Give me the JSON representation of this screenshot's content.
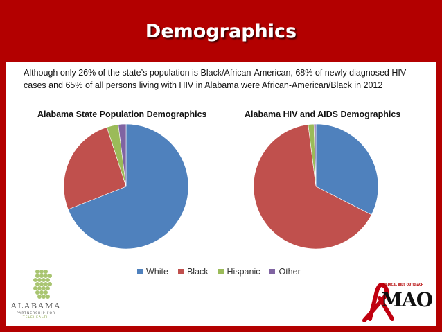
{
  "header": {
    "title": "Demographics"
  },
  "intro_text": "Although only 26% of the state’s population is Black/African-American, 68% of newly diagnosed HIV cases and 65% of all persons living with HIV in Alabama were African-American/Black in 2012",
  "colors": {
    "white": "#4f81bd",
    "black": "#c0504d",
    "hispanic": "#9bbb59",
    "other": "#8064a2",
    "brand": "#b30000"
  },
  "chart_data": [
    {
      "type": "pie",
      "title": "Alabama State Population Demographics",
      "categories": [
        "White",
        "Black",
        "Hispanic",
        "Other"
      ],
      "values": [
        69,
        26,
        3,
        2
      ]
    },
    {
      "type": "pie",
      "title": "Alabama HIV and AIDS Demographics",
      "categories": [
        "White",
        "Black",
        "Hispanic",
        "Other"
      ],
      "values": [
        32.5,
        65.5,
        1.5,
        0.5
      ]
    }
  ],
  "legend": {
    "placement": "bottom",
    "items": [
      "White",
      "Black",
      "Hispanic",
      "Other"
    ]
  },
  "logos": {
    "left_word": "ALABAMA",
    "left_sub": "PARTNERSHIP FOR",
    "left_sub2": "TELEHEALTH",
    "right_word": "MAO",
    "right_small": "MEDICAL AIDS OUTREACH"
  }
}
